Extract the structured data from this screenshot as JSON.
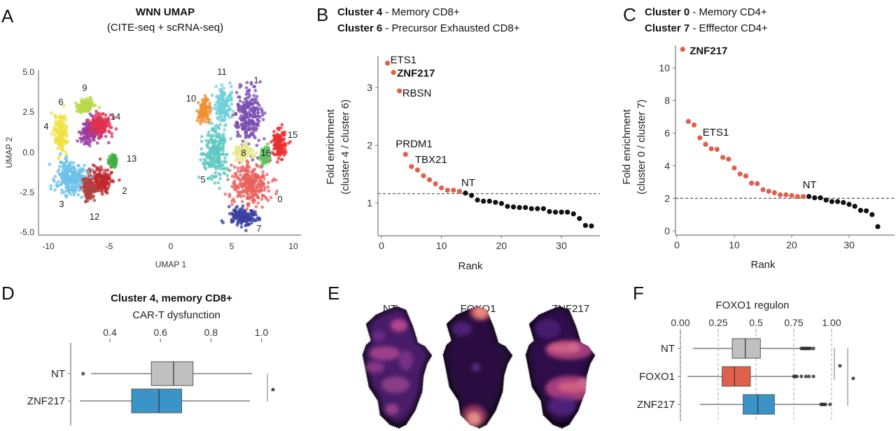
{
  "panels": {
    "a": "A",
    "b": "B",
    "c": "C",
    "d": "D",
    "e": "E",
    "f": "F"
  },
  "colors": {
    "enriched": "#e0604c",
    "background": "#111111",
    "nt_box": "#c0c0c0",
    "znf217_box": "#3a94c8",
    "foxo1_box": "#e0604c"
  },
  "chart_data": [
    {
      "id": "A",
      "type": "scatter",
      "title": "WNN UMAP",
      "subtitle": "(CITE-seq + scRNA-seq)",
      "xlabel": "UMAP 1",
      "ylabel": "UMAP 2",
      "xlim": [
        -10.5,
        10.5
      ],
      "ylim": [
        -5.2,
        5.2
      ],
      "xticks": [
        "-10",
        "-5",
        "0",
        "5",
        "10"
      ],
      "yticks": [
        "5.0",
        "2.5",
        "0.0",
        "-2.5",
        "-5.0"
      ],
      "clusters": [
        {
          "label": "0",
          "color": "#e8625e",
          "center": [
            6.5,
            -2.0
          ],
          "spread": [
            1.4,
            1.2
          ]
        },
        {
          "label": "1",
          "color": "#7b4fb0",
          "center": [
            6.3,
            2.3
          ],
          "spread": [
            1.0,
            1.5
          ]
        },
        {
          "label": "2",
          "color": "#c0282c",
          "center": [
            -5.8,
            -1.7
          ],
          "spread": [
            0.9,
            0.8
          ]
        },
        {
          "label": "3",
          "color": "#6cc0e8",
          "center": [
            -8.2,
            -1.6
          ],
          "spread": [
            1.1,
            1.1
          ]
        },
        {
          "label": "4",
          "color": "#f0e040",
          "center": [
            -9.0,
            1.2
          ],
          "spread": [
            0.5,
            1.0
          ]
        },
        {
          "label": "5",
          "color": "#5ec8c0",
          "center": [
            3.6,
            0.0
          ],
          "spread": [
            0.9,
            1.4
          ]
        },
        {
          "label": "6",
          "color": "#9a3aa0",
          "center": [
            -6.5,
            1.3
          ],
          "spread": [
            1.0,
            0.6
          ]
        },
        {
          "label": "7",
          "color": "#3a3fa0",
          "center": [
            5.8,
            -4.0
          ],
          "spread": [
            1.0,
            0.5
          ]
        },
        {
          "label": "8",
          "color": "#e8e890",
          "center": [
            6.0,
            0.0
          ],
          "spread": [
            0.7,
            0.4
          ]
        },
        {
          "label": "9",
          "color": "#b8d848",
          "center": [
            -7.0,
            2.9
          ],
          "spread": [
            0.6,
            0.3
          ]
        },
        {
          "label": "10",
          "color": "#f09030",
          "center": [
            2.7,
            2.6
          ],
          "spread": [
            0.5,
            0.6
          ]
        },
        {
          "label": "11",
          "color": "#70d0d8",
          "center": [
            4.3,
            3.0
          ],
          "spread": [
            0.6,
            1.0
          ]
        },
        {
          "label": "12",
          "color": "#b04040",
          "center": [
            -6.7,
            -2.2
          ],
          "spread": [
            0.5,
            0.6
          ]
        },
        {
          "label": "13",
          "color": "#40b040",
          "center": [
            -4.7,
            -0.5
          ],
          "spread": [
            0.3,
            0.3
          ]
        },
        {
          "label": "14",
          "color": "#e03050",
          "center": [
            -5.8,
            1.8
          ],
          "spread": [
            0.8,
            0.6
          ]
        },
        {
          "label": "15",
          "color": "#e83030",
          "center": [
            8.9,
            0.5
          ],
          "spread": [
            0.5,
            0.8
          ]
        },
        {
          "label": "16",
          "color": "#60c060",
          "center": [
            7.7,
            -0.2
          ],
          "spread": [
            0.3,
            0.5
          ]
        }
      ]
    },
    {
      "id": "B",
      "type": "scatter",
      "title_lines": [
        {
          "bold": "Cluster 4",
          "rest": " - Memory CD8+"
        },
        {
          "bold": "Cluster 6",
          "rest": " - Precursor Exhausted CD8+"
        }
      ],
      "xlabel": "Rank",
      "ylabel": "Fold enrichment",
      "ylabel2": "(cluster 4 / cluster 6)",
      "xlim": [
        -0.5,
        37
      ],
      "ylim": [
        0.45,
        3.6
      ],
      "xticks": [
        "0",
        "10",
        "20",
        "30"
      ],
      "yticks": [
        "1",
        "2",
        "3"
      ],
      "threshold": 1.16,
      "enriched_count": 13,
      "values": [
        3.42,
        3.26,
        2.94,
        1.84,
        1.63,
        1.57,
        1.47,
        1.4,
        1.33,
        1.26,
        1.22,
        1.22,
        1.2,
        1.17,
        1.13,
        1.05,
        1.03,
        1.03,
        1.01,
        0.99,
        0.94,
        0.93,
        0.92,
        0.92,
        0.9,
        0.9,
        0.9,
        0.85,
        0.84,
        0.84,
        0.84,
        0.81,
        0.73,
        0.61,
        0.6
      ],
      "annotations": [
        {
          "rank": 1,
          "label": "ETS1",
          "bold": false
        },
        {
          "rank": 2,
          "label": "ZNF217",
          "bold": true
        },
        {
          "rank": 3,
          "label": "RBSN",
          "bold": false
        },
        {
          "rank": 4,
          "label": "PRDM1",
          "bold": false
        },
        {
          "rank": 5,
          "label": "TBX21",
          "bold": false
        },
        {
          "rank": 14,
          "label": "NT",
          "bold": false
        }
      ]
    },
    {
      "id": "C",
      "type": "scatter",
      "title_lines": [
        {
          "bold": "Cluster 0",
          "rest": " - Memory CD4+"
        },
        {
          "bold": "Cluster 7",
          "rest": " - Efffector CD4+"
        }
      ],
      "xlabel": "Rank",
      "ylabel": "Fold enrichment",
      "ylabel2": "(cluster 0 / cluster 7)",
      "xlim": [
        -0.5,
        37
      ],
      "ylim": [
        -0.3,
        11.6
      ],
      "xticks": [
        "0",
        "10",
        "20",
        "30"
      ],
      "yticks": [
        "0",
        "2",
        "4",
        "6",
        "8",
        "10"
      ],
      "threshold": 2.0,
      "enriched_count": 22,
      "values": [
        11.14,
        6.71,
        6.5,
        5.71,
        5.31,
        5.04,
        5.0,
        4.51,
        4.4,
        3.86,
        3.49,
        3.37,
        2.93,
        2.9,
        2.53,
        2.43,
        2.34,
        2.21,
        2.21,
        2.17,
        2.11,
        2.11,
        2.11,
        2.03,
        2.03,
        1.89,
        1.8,
        1.8,
        1.74,
        1.63,
        1.51,
        1.26,
        1.23,
        1.0,
        0.26
      ],
      "annotations": [
        {
          "rank": 1,
          "label": "ZNF217",
          "bold": true
        },
        {
          "rank": 4,
          "label": "ETS1",
          "bold": false
        },
        {
          "rank": 23,
          "label": "NT",
          "bold": false
        }
      ]
    },
    {
      "id": "D",
      "type": "box",
      "title": "Cluster 4, memory CD8+",
      "xlabel": "CAR-T dysfunction",
      "xlim": [
        0.27,
        1.02
      ],
      "xticks": [
        "0.4",
        "0.6",
        "0.8",
        "1.0"
      ],
      "categories": [
        "NT",
        "ZNF217"
      ],
      "boxes": [
        {
          "name": "NT",
          "whisker_low": 0.326,
          "q1": 0.564,
          "median": 0.652,
          "q3": 0.729,
          "whisker_high": 0.963,
          "outliers": [
            0.294
          ]
        },
        {
          "name": "ZNF217",
          "whisker_low": 0.282,
          "q1": 0.486,
          "median": 0.594,
          "q3": 0.684,
          "whisker_high": 0.954,
          "outliers": []
        }
      ],
      "significance": "*"
    },
    {
      "id": "E",
      "type": "heatmap",
      "labels": [
        "NT",
        "FOXO1",
        "ZNF217"
      ]
    },
    {
      "id": "F",
      "type": "box",
      "xlabel": "FOXO1 regulon",
      "xlim": [
        -0.02,
        1.05
      ],
      "xticks": [
        "0.00",
        "0.25",
        "0.5",
        "0.75",
        "1.00"
      ],
      "gridlines": "dashed-vertical",
      "categories": [
        "NT",
        "FOXO1",
        "ZNF217"
      ],
      "boxes": [
        {
          "name": "NT",
          "whisker_low": 0.082,
          "q1": 0.343,
          "median": 0.429,
          "q3": 0.529,
          "whisker_high": 0.8,
          "outliers": [
            0.8,
            0.81,
            0.82,
            0.83,
            0.84,
            0.85,
            0.86,
            0.88
          ]
        },
        {
          "name": "FOXO1",
          "whisker_low": 0.046,
          "q1": 0.276,
          "median": 0.358,
          "q3": 0.463,
          "whisker_high": 0.748,
          "outliers": [
            0.75,
            0.76,
            0.77,
            0.8,
            0.83,
            0.85,
            0.88
          ]
        },
        {
          "name": "ZNF217",
          "whisker_low": 0.128,
          "q1": 0.415,
          "median": 0.512,
          "q3": 0.622,
          "whisker_high": 0.926,
          "outliers": [
            0.93,
            0.94,
            0.95,
            0.96,
            0.99
          ]
        }
      ],
      "significance": [
        "*",
        "*"
      ]
    }
  ]
}
